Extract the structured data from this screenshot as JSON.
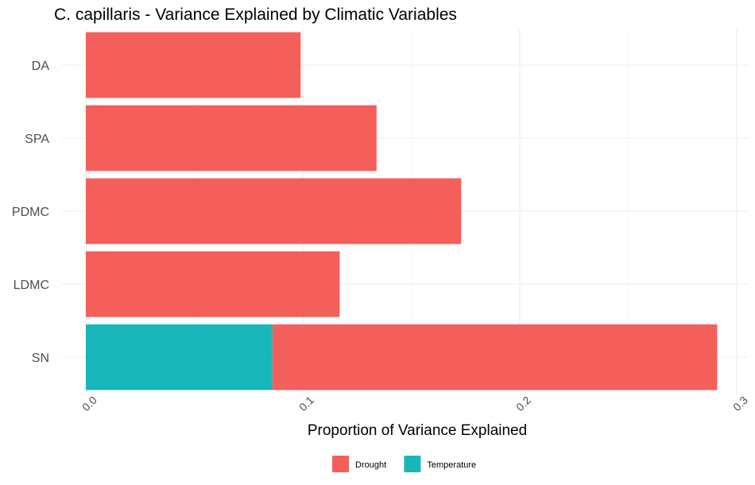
{
  "chart_data": {
    "type": "bar",
    "orientation": "horizontal",
    "stacked": true,
    "title": "C. capillaris - Variance Explained by Climatic Variables",
    "xlabel": "Proportion of Variance Explained",
    "ylabel": "",
    "categories": [
      "DA",
      "SPA",
      "PDMC",
      "LDMC",
      "SN"
    ],
    "series": [
      {
        "name": "Temperature",
        "color": "#19b6b9",
        "values": [
          0,
          0,
          0,
          0,
          0.086
        ]
      },
      {
        "name": "Drought",
        "color": "#f45f5c",
        "values": [
          0.099,
          0.134,
          0.173,
          0.117,
          0.205
        ]
      }
    ],
    "xlim": [
      0,
      0.3
    ],
    "xticks": [
      0.0,
      0.1,
      0.2,
      0.3
    ],
    "xtick_labels": [
      "0.0",
      "0.1",
      "0.2",
      "0.3"
    ],
    "legend": {
      "position": "bottom",
      "entries": [
        {
          "label": "Drought",
          "color": "#f45f5c"
        },
        {
          "label": "Temperature",
          "color": "#19b6b9"
        }
      ]
    },
    "grid": true
  }
}
